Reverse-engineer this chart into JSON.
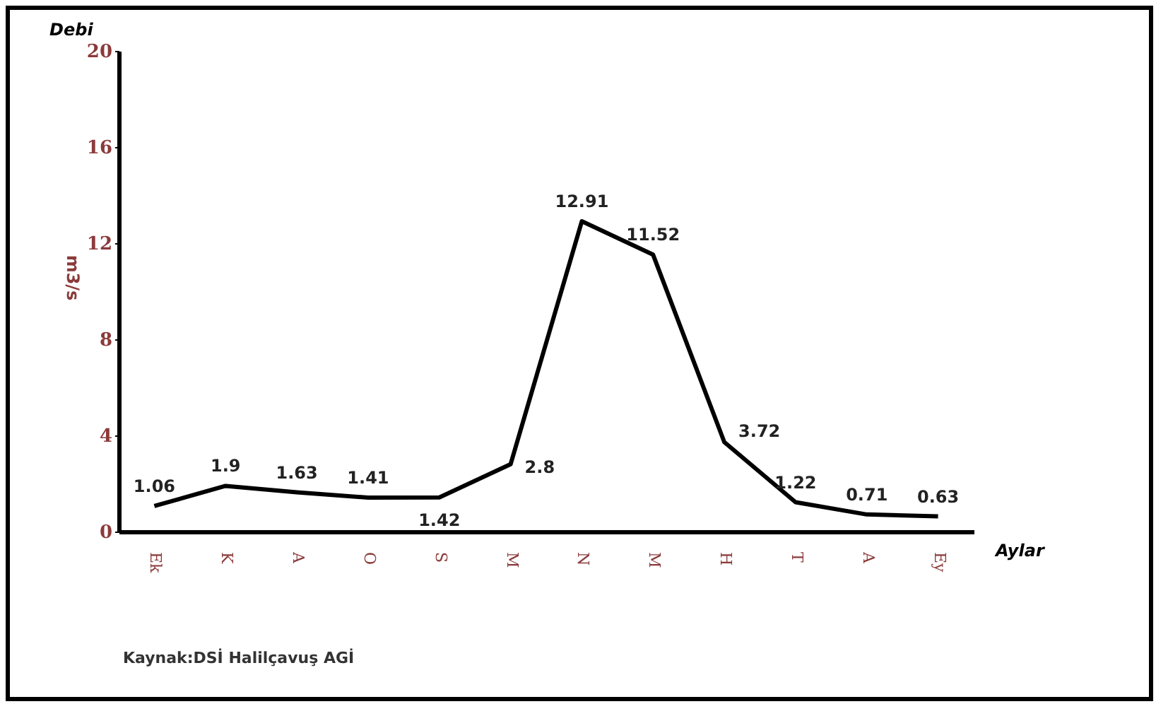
{
  "chart_data": {
    "type": "line",
    "title": "Debi",
    "xlabel": "Aylar",
    "ylabel": "m3/s",
    "categories": [
      "Ek",
      "K",
      "A",
      "O",
      "S",
      "M",
      "N",
      "M",
      "H",
      "T",
      "A",
      "Ey"
    ],
    "series": [
      {
        "color": "#000000",
        "values": [
          1.06,
          1.9,
          1.63,
          1.41,
          1.42,
          2.8,
          12.91,
          11.52,
          3.72,
          1.22,
          0.71,
          0.63
        ]
      }
    ],
    "ylim": [
      0,
      20
    ],
    "yticks": [
      0,
      4,
      8,
      12,
      16,
      20
    ],
    "grid": false,
    "legend": false,
    "marker": "none",
    "line_style": "solid",
    "data_labels": true,
    "annotations": [
      "Kaynak:DSİ Halilçavuş AGİ"
    ]
  }
}
